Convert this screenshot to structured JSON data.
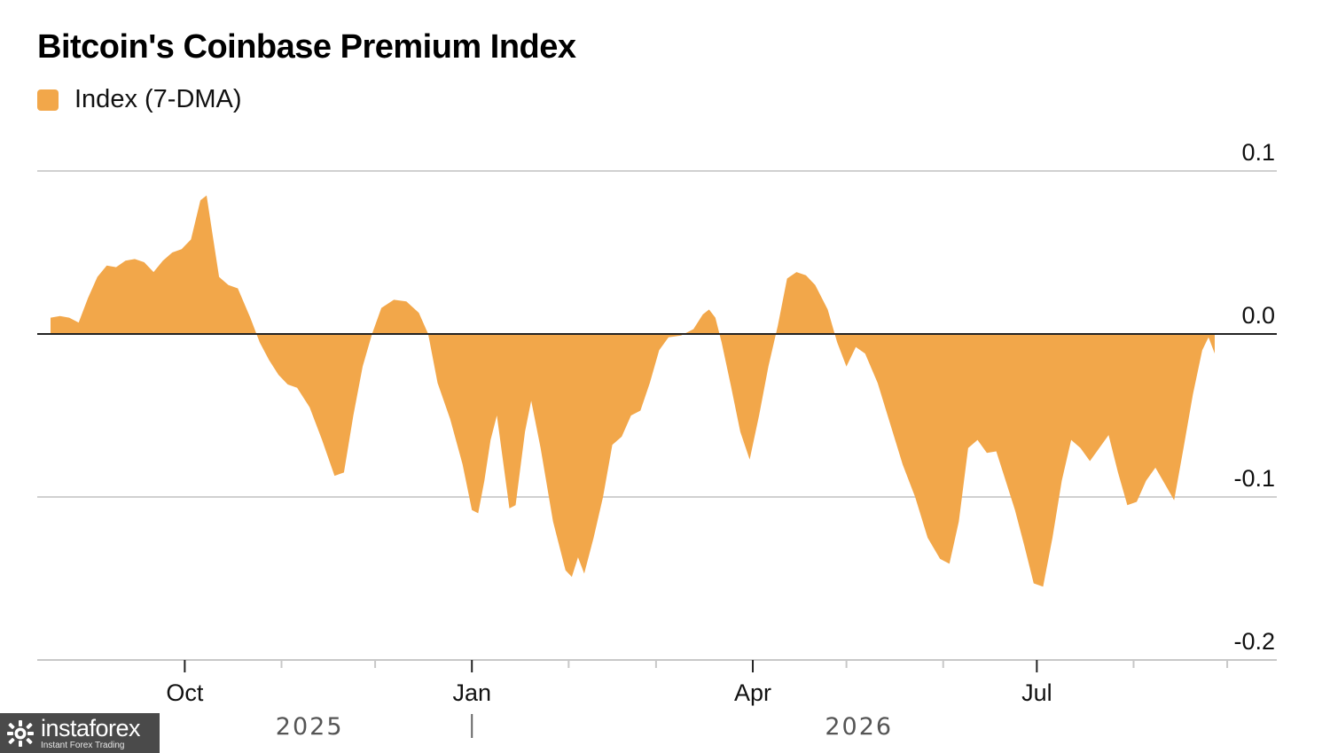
{
  "title": "Bitcoin's Coinbase Premium Index",
  "legend": {
    "label": "Index (7-DMA)",
    "color": "#f2a74a"
  },
  "watermark": {
    "name": "instaforex",
    "tagline": "Instant Forex Trading"
  },
  "chart_data": {
    "type": "area",
    "title": "Bitcoin's Coinbase Premium Index",
    "series": [
      {
        "name": "Index (7-DMA)",
        "color": "#f2a74a",
        "points": [
          [
            "2025-08-19",
            0.01
          ],
          [
            "2025-08-22",
            0.011
          ],
          [
            "2025-08-25",
            0.01
          ],
          [
            "2025-08-28",
            0.007
          ],
          [
            "2025-08-31",
            0.022
          ],
          [
            "2025-09-03",
            0.035
          ],
          [
            "2025-09-06",
            0.042
          ],
          [
            "2025-09-09",
            0.041
          ],
          [
            "2025-09-12",
            0.045
          ],
          [
            "2025-09-15",
            0.046
          ],
          [
            "2025-09-18",
            0.044
          ],
          [
            "2025-09-21",
            0.038
          ],
          [
            "2025-09-24",
            0.045
          ],
          [
            "2025-09-27",
            0.05
          ],
          [
            "2025-09-30",
            0.052
          ],
          [
            "2025-10-03",
            0.058
          ],
          [
            "2025-10-06",
            0.082
          ],
          [
            "2025-10-08",
            0.085
          ],
          [
            "2025-10-10",
            0.06
          ],
          [
            "2025-10-12",
            0.035
          ],
          [
            "2025-10-15",
            0.03
          ],
          [
            "2025-10-18",
            0.028
          ],
          [
            "2025-10-22",
            0.01
          ],
          [
            "2025-10-25",
            -0.005
          ],
          [
            "2025-10-28",
            -0.016
          ],
          [
            "2025-10-31",
            -0.025
          ],
          [
            "2025-11-03",
            -0.031
          ],
          [
            "2025-11-06",
            -0.033
          ],
          [
            "2025-11-10",
            -0.045
          ],
          [
            "2025-11-14",
            -0.065
          ],
          [
            "2025-11-18",
            -0.087
          ],
          [
            "2025-11-21",
            -0.085
          ],
          [
            "2025-11-24",
            -0.05
          ],
          [
            "2025-11-27",
            -0.02
          ],
          [
            "2025-11-30",
            0.0
          ],
          [
            "2025-12-03",
            0.016
          ],
          [
            "2025-12-07",
            0.021
          ],
          [
            "2025-12-11",
            0.02
          ],
          [
            "2025-12-15",
            0.013
          ],
          [
            "2025-12-18",
            0.0
          ],
          [
            "2025-12-21",
            -0.03
          ],
          [
            "2025-12-25",
            -0.052
          ],
          [
            "2025-12-29",
            -0.08
          ],
          [
            "2026-01-01",
            -0.108
          ],
          [
            "2026-01-03",
            -0.11
          ],
          [
            "2026-01-05",
            -0.09
          ],
          [
            "2026-01-07",
            -0.065
          ],
          [
            "2026-01-09",
            -0.05
          ],
          [
            "2026-01-13",
            -0.107
          ],
          [
            "2026-01-15",
            -0.105
          ],
          [
            "2026-01-18",
            -0.06
          ],
          [
            "2026-01-20",
            -0.041
          ],
          [
            "2026-01-23",
            -0.07
          ],
          [
            "2026-01-27",
            -0.115
          ],
          [
            "2026-01-31",
            -0.145
          ],
          [
            "2026-02-02",
            -0.149
          ],
          [
            "2026-02-04",
            -0.137
          ],
          [
            "2026-02-06",
            -0.147
          ],
          [
            "2026-02-09",
            -0.125
          ],
          [
            "2026-02-12",
            -0.1
          ],
          [
            "2026-02-15",
            -0.068
          ],
          [
            "2026-02-18",
            -0.063
          ],
          [
            "2026-02-21",
            -0.05
          ],
          [
            "2026-02-24",
            -0.047
          ],
          [
            "2026-02-27",
            -0.03
          ],
          [
            "2026-03-02",
            -0.01
          ],
          [
            "2026-03-05",
            -0.002
          ],
          [
            "2026-03-09",
            -0.001
          ],
          [
            "2026-03-13",
            0.003
          ],
          [
            "2026-03-16",
            0.012
          ],
          [
            "2026-03-18",
            0.015
          ],
          [
            "2026-03-20",
            0.01
          ],
          [
            "2026-03-22",
            -0.005
          ],
          [
            "2026-03-25",
            -0.032
          ],
          [
            "2026-03-28",
            -0.06
          ],
          [
            "2026-03-31",
            -0.077
          ],
          [
            "2026-04-03",
            -0.05
          ],
          [
            "2026-04-06",
            -0.02
          ],
          [
            "2026-04-09",
            0.005
          ],
          [
            "2026-04-12",
            0.034
          ],
          [
            "2026-04-15",
            0.038
          ],
          [
            "2026-04-18",
            0.036
          ],
          [
            "2026-04-21",
            0.03
          ],
          [
            "2026-04-25",
            0.015
          ],
          [
            "2026-04-28",
            -0.005
          ],
          [
            "2026-05-01",
            -0.02
          ],
          [
            "2026-05-04",
            -0.008
          ],
          [
            "2026-05-07",
            -0.012
          ],
          [
            "2026-05-11",
            -0.03
          ],
          [
            "2026-05-15",
            -0.055
          ],
          [
            "2026-05-19",
            -0.08
          ],
          [
            "2026-05-23",
            -0.1
          ],
          [
            "2026-05-27",
            -0.125
          ],
          [
            "2026-05-31",
            -0.138
          ],
          [
            "2026-06-03",
            -0.141
          ],
          [
            "2026-06-06",
            -0.115
          ],
          [
            "2026-06-09",
            -0.07
          ],
          [
            "2026-06-12",
            -0.065
          ],
          [
            "2026-06-15",
            -0.073
          ],
          [
            "2026-06-18",
            -0.072
          ],
          [
            "2026-06-21",
            -0.09
          ],
          [
            "2026-06-24",
            -0.108
          ],
          [
            "2026-06-27",
            -0.13
          ],
          [
            "2026-06-30",
            -0.153
          ],
          [
            "2026-07-03",
            -0.155
          ],
          [
            "2026-07-06",
            -0.125
          ],
          [
            "2026-07-09",
            -0.09
          ],
          [
            "2026-07-12",
            -0.065
          ],
          [
            "2026-07-15",
            -0.07
          ],
          [
            "2026-07-18",
            -0.078
          ],
          [
            "2026-07-21",
            -0.07
          ],
          [
            "2026-07-24",
            -0.062
          ],
          [
            "2026-07-27",
            -0.085
          ],
          [
            "2026-07-30",
            -0.105
          ],
          [
            "2026-08-02",
            -0.103
          ],
          [
            "2026-08-05",
            -0.09
          ],
          [
            "2026-08-08",
            -0.082
          ],
          [
            "2026-08-11",
            -0.092
          ],
          [
            "2026-08-14",
            -0.102
          ],
          [
            "2026-08-17",
            -0.07
          ],
          [
            "2026-08-20",
            -0.037
          ],
          [
            "2026-08-23",
            -0.01
          ],
          [
            "2026-08-25",
            -0.002
          ],
          [
            "2026-08-27",
            -0.012
          ]
        ]
      }
    ],
    "y_ticks": [
      {
        "value": 0.1,
        "label": "0.1"
      },
      {
        "value": 0.0,
        "label": "0.0"
      },
      {
        "value": -0.1,
        "label": "-0.1"
      },
      {
        "value": -0.2,
        "label": "-0.2"
      }
    ],
    "ylim": [
      -0.2,
      0.1
    ],
    "x_range": [
      "2025-08-15",
      "2026-08-31"
    ],
    "x_ticks": [
      {
        "date": "2025-10-01",
        "label": "Oct"
      },
      {
        "date": "2026-01-01",
        "label": "Jan"
      },
      {
        "date": "2026-04-01",
        "label": "Apr"
      },
      {
        "date": "2026-07-01",
        "label": "Jul"
      }
    ],
    "x_minor_ticks": [
      "2025-11-01",
      "2025-12-01",
      "2026-02-01",
      "2026-03-01",
      "2026-05-01",
      "2026-06-01",
      "2026-08-01",
      "2026-08-31"
    ],
    "years": [
      {
        "label": "2025",
        "date": "2025-11-10"
      },
      {
        "label": "2026",
        "date": "2026-05-05"
      }
    ],
    "year_separator": "2026-01-01",
    "grid": true,
    "y_axis_side": "right",
    "legend_position": "top-left"
  }
}
